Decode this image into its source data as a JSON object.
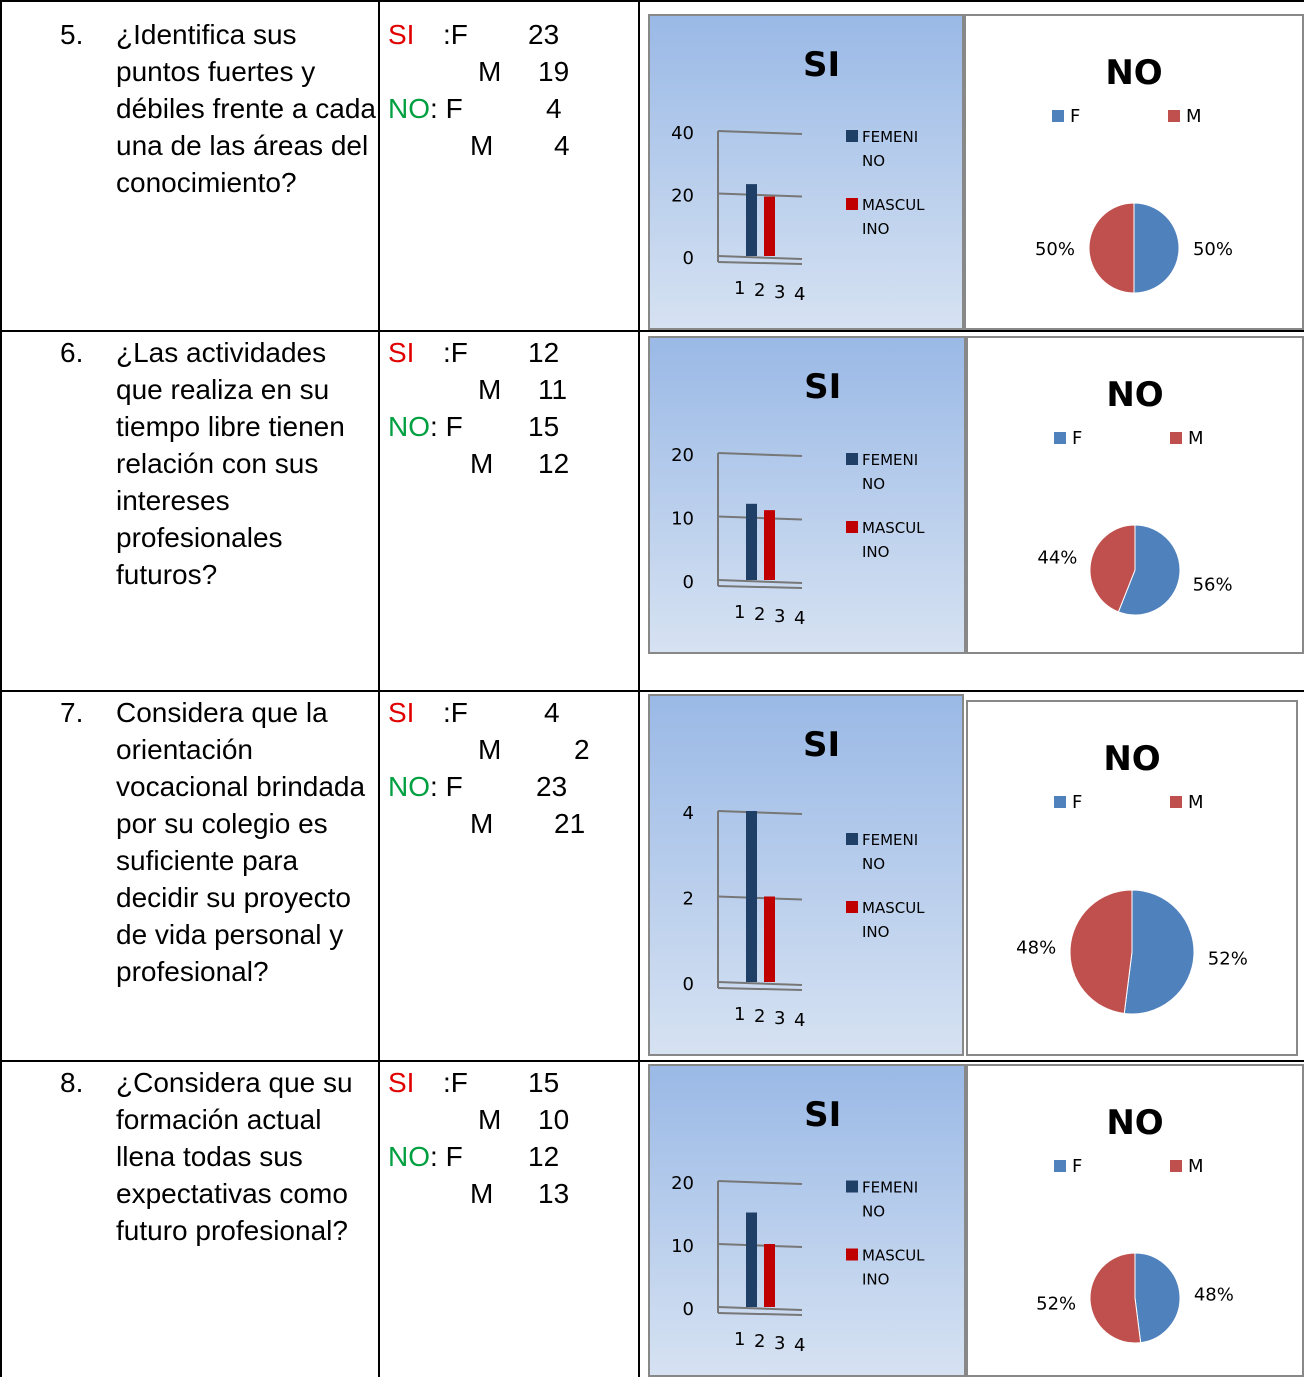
{
  "colors": {
    "si_label": "#e00000",
    "no_label": "#00a040",
    "femenino_bar": "#1f3f66",
    "masculino_bar": "#c00000",
    "pie_f": "#4f81bd",
    "pie_m": "#c0504d"
  },
  "labels": {
    "si": "SI",
    "no": "NO",
    "f": "F",
    "m": "M",
    "legend_fem_1": "FEMENI",
    "legend_fem_2": "NO",
    "legend_masc_1": "MASCUL",
    "legend_masc_2": "INO"
  },
  "rows": [
    {
      "number": "5.",
      "question": "¿Identifica sus puntos fuertes y débiles frente a cada una de las áreas del conocimiento?",
      "counts": {
        "si_f": "23",
        "si_m": "19",
        "no_f": "4",
        "no_m": "4"
      }
    },
    {
      "number": "6.",
      "question": "¿Las actividades que realiza en su tiempo libre tienen relación con sus intereses profesionales futuros?",
      "counts": {
        "si_f": "12",
        "si_m": "11",
        "no_f": "15",
        "no_m": "12"
      }
    },
    {
      "number": "7.",
      "question": "Considera que la orientación vocacional brindada por su colegio es suficiente para decidir su proyecto de vida personal y profesional?",
      "counts": {
        "si_f": "4",
        "si_m": "2",
        "no_f": "23",
        "no_m": "21"
      }
    },
    {
      "number": "8.",
      "question": "¿Considera que su formación actual llena todas sus expectativas como futuro profesional?",
      "counts": {
        "si_f": "15",
        "si_m": "10",
        "no_f": "12",
        "no_m": "13"
      }
    }
  ],
  "chart_data": [
    {
      "type": "bar",
      "title": "SI",
      "categories": [
        "1",
        "2",
        "3",
        "4"
      ],
      "series": [
        {
          "name": "FEMENINO",
          "values": [
            0,
            23,
            0,
            0
          ]
        },
        {
          "name": "MASCULINO",
          "values": [
            0,
            0,
            19,
            0
          ]
        }
      ],
      "yticks": [
        "0",
        "20",
        "40"
      ],
      "ylim": [
        0,
        40
      ],
      "legend": "right"
    },
    {
      "type": "pie",
      "title": "NO",
      "categories": [
        "F",
        "M"
      ],
      "values": [
        50,
        50
      ],
      "labels": [
        "50%",
        "50%"
      ],
      "legend": "top"
    },
    {
      "type": "bar",
      "title": "SI",
      "categories": [
        "1",
        "2",
        "3",
        "4"
      ],
      "series": [
        {
          "name": "FEMENINO",
          "values": [
            0,
            12,
            0,
            0
          ]
        },
        {
          "name": "MASCULINO",
          "values": [
            0,
            0,
            11,
            0
          ]
        }
      ],
      "yticks": [
        "0",
        "10",
        "20"
      ],
      "ylim": [
        0,
        20
      ],
      "legend": "right"
    },
    {
      "type": "pie",
      "title": "NO",
      "categories": [
        "F",
        "M"
      ],
      "values": [
        56,
        44
      ],
      "labels": [
        "56%",
        "44%"
      ],
      "legend": "top"
    },
    {
      "type": "bar",
      "title": "SI",
      "categories": [
        "1",
        "2",
        "3",
        "4"
      ],
      "series": [
        {
          "name": "FEMENINO",
          "values": [
            0,
            4,
            0,
            0
          ]
        },
        {
          "name": "MASCULINO",
          "values": [
            0,
            0,
            2,
            0
          ]
        }
      ],
      "yticks": [
        "0",
        "2",
        "4"
      ],
      "ylim": [
        0,
        4
      ],
      "legend": "right"
    },
    {
      "type": "pie",
      "title": "NO",
      "categories": [
        "F",
        "M"
      ],
      "values": [
        52,
        48
      ],
      "labels": [
        "52%",
        "48%"
      ],
      "legend": "top"
    },
    {
      "type": "bar",
      "title": "SI",
      "categories": [
        "1",
        "2",
        "3",
        "4"
      ],
      "series": [
        {
          "name": "FEMENINO",
          "values": [
            0,
            15,
            0,
            0
          ]
        },
        {
          "name": "MASCULINO",
          "values": [
            0,
            0,
            10,
            0
          ]
        }
      ],
      "yticks": [
        "0",
        "10",
        "20"
      ],
      "ylim": [
        0,
        20
      ],
      "legend": "right"
    },
    {
      "type": "pie",
      "title": "NO",
      "categories": [
        "F",
        "M"
      ],
      "values": [
        48,
        52
      ],
      "labels": [
        "48%",
        "52%"
      ],
      "legend": "top"
    }
  ]
}
